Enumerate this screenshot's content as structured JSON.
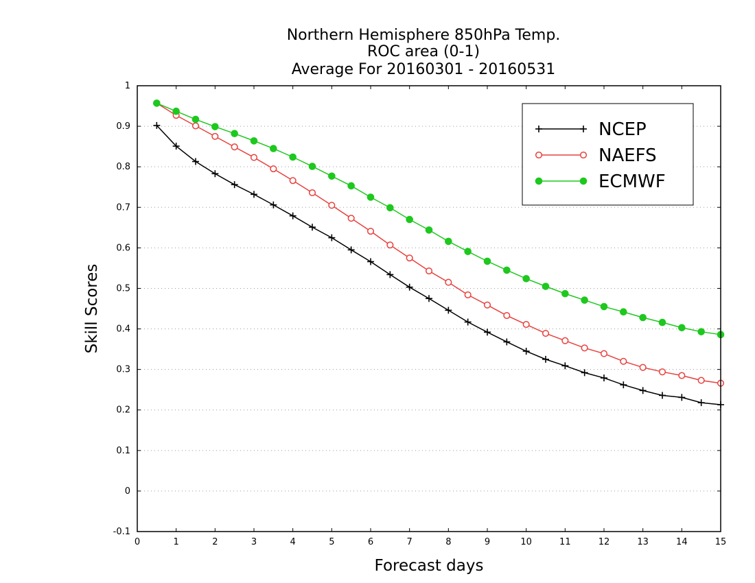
{
  "chart_data": {
    "type": "line",
    "title_lines": [
      "Northern Hemisphere 850hPa Temp.",
      "ROC area (0-1)",
      "Average For 20160301 - 20160531"
    ],
    "xlabel": "Forecast days",
    "ylabel": "Skill Scores",
    "xlim": [
      0,
      15
    ],
    "ylim": [
      -0.1,
      1
    ],
    "xticks": [
      0,
      1,
      2,
      3,
      4,
      5,
      6,
      7,
      8,
      9,
      10,
      11,
      12,
      13,
      14,
      15
    ],
    "xtick_labels": [
      "0",
      "1",
      "2",
      "3",
      "4",
      "5",
      "6",
      "7",
      "8",
      "9",
      "10",
      "11",
      "12",
      "13",
      "14",
      "15"
    ],
    "yticks": [
      -0.1,
      0,
      0.1,
      0.2,
      0.3,
      0.4,
      0.5,
      0.6,
      0.7,
      0.8,
      0.9,
      1
    ],
    "ytick_labels": [
      "-0.1",
      "0",
      "0.1",
      "0.2",
      "0.3",
      "0.4",
      "0.5",
      "0.6",
      "0.7",
      "0.8",
      "0.9",
      "1"
    ],
    "grid": "horizontal-dotted",
    "legend_position": "top-right",
    "x": [
      0.5,
      1,
      1.5,
      2,
      2.5,
      3,
      3.5,
      4,
      4.5,
      5,
      5.5,
      6,
      6.5,
      7,
      7.5,
      8,
      8.5,
      9,
      9.5,
      10,
      10.5,
      11,
      11.5,
      12,
      12.5,
      13,
      13.5,
      14,
      14.5,
      15
    ],
    "series": [
      {
        "name": "NCEP",
        "color": "#000000",
        "marker": "plus",
        "values": [
          0.902,
          0.851,
          0.813,
          0.783,
          0.756,
          0.732,
          0.706,
          0.679,
          0.651,
          0.625,
          0.595,
          0.566,
          0.534,
          0.503,
          0.475,
          0.446,
          0.417,
          0.392,
          0.368,
          0.345,
          0.325,
          0.309,
          0.292,
          0.279,
          0.262,
          0.248,
          0.236,
          0.231,
          0.218,
          0.213
        ]
      },
      {
        "name": "NAEFS",
        "color": "#e8403c",
        "marker": "open-circle",
        "values": [
          0.957,
          0.927,
          0.901,
          0.875,
          0.849,
          0.823,
          0.795,
          0.766,
          0.736,
          0.705,
          0.673,
          0.641,
          0.607,
          0.575,
          0.543,
          0.515,
          0.484,
          0.459,
          0.433,
          0.411,
          0.389,
          0.371,
          0.353,
          0.339,
          0.32,
          0.305,
          0.294,
          0.285,
          0.273,
          0.266
        ]
      },
      {
        "name": "ECMWF",
        "color": "#1ec81e",
        "marker": "filled-circle",
        "values": [
          0.957,
          0.937,
          0.917,
          0.899,
          0.882,
          0.864,
          0.845,
          0.824,
          0.801,
          0.777,
          0.753,
          0.725,
          0.699,
          0.67,
          0.644,
          0.616,
          0.591,
          0.567,
          0.545,
          0.524,
          0.505,
          0.487,
          0.471,
          0.455,
          0.442,
          0.428,
          0.416,
          0.403,
          0.393,
          0.386
        ]
      }
    ]
  }
}
